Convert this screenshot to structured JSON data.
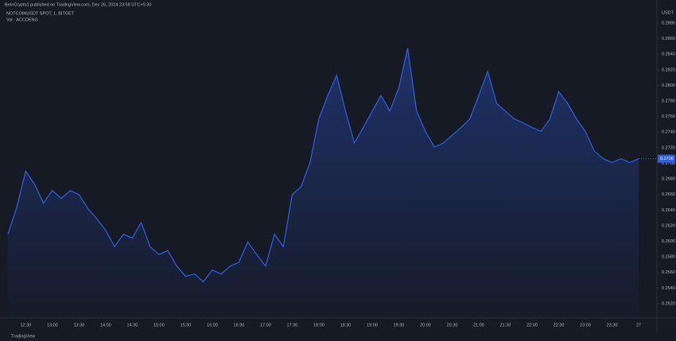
{
  "header": {
    "publisher": "BeInCrypto1 published on TradingView.com, Dec 26, 2024 23:58 UTC+5:30",
    "brand": "TradingView"
  },
  "chart_data": {
    "type": "area",
    "title": "NOTCOINUSDT SPOT, 1, BITGET",
    "subtitle": "Vol · ACCDENG",
    "currency": "USDT",
    "color": "#2f5fe8",
    "categories": [
      null,
      null,
      "12:30",
      null,
      null,
      "13:00",
      null,
      null,
      "13:30",
      null,
      null,
      "14:00",
      null,
      null,
      "14:30",
      null,
      null,
      "15:00",
      null,
      null,
      "15:30",
      null,
      null,
      "16:00",
      null,
      null,
      "16:30",
      null,
      null,
      "17:00",
      null,
      null,
      "17:30",
      null,
      null,
      "18:00",
      null,
      null,
      "18:30",
      null,
      null,
      "19:00",
      null,
      null,
      "19:30",
      null,
      null,
      "20:00",
      null,
      null,
      "20:30",
      null,
      null,
      "21:00",
      null,
      null,
      "21:30",
      null,
      null,
      "22:00",
      null,
      null,
      "22:30",
      null,
      null,
      "23:00",
      null,
      null,
      "23:30",
      null,
      null,
      "27"
    ],
    "values": [
      0.2609,
      0.2644,
      0.269,
      0.2673,
      0.2649,
      0.2665,
      0.2655,
      0.2665,
      0.266,
      0.2642,
      0.2629,
      0.2614,
      0.2593,
      0.2609,
      0.2604,
      0.2624,
      0.2593,
      0.2583,
      0.2588,
      0.2568,
      0.2555,
      0.2558,
      0.2548,
      0.2563,
      0.2558,
      0.2568,
      0.2573,
      0.2599,
      0.2583,
      0.2568,
      0.2609,
      0.2593,
      0.266,
      0.267,
      0.2701,
      0.2757,
      0.2787,
      0.2813,
      0.2767,
      0.2726,
      0.2746,
      0.2767,
      0.2787,
      0.2767,
      0.2797,
      0.2848,
      0.2767,
      0.2741,
      0.2721,
      0.2726,
      0.2736,
      0.2746,
      0.2757,
      0.2787,
      0.2818,
      0.2777,
      0.2767,
      0.2757,
      0.2752,
      0.2746,
      0.2741,
      0.2757,
      0.2792,
      0.2777,
      0.2757,
      0.2741,
      0.2716,
      0.2706,
      0.2701,
      0.2706,
      0.2701,
      0.2706
    ],
    "ylim": [
      0.252,
      0.288
    ],
    "yticks": [
      {
        "value": 0.288,
        "label": "0.2880"
      },
      {
        "value": 0.286,
        "label": "0.2860"
      },
      {
        "value": 0.284,
        "label": "0.2840"
      },
      {
        "value": 0.282,
        "label": "0.2820"
      },
      {
        "value": 0.28,
        "label": "0.2800"
      },
      {
        "value": 0.278,
        "label": "0.2780"
      },
      {
        "value": 0.276,
        "label": "0.2760"
      },
      {
        "value": 0.274,
        "label": "0.2740"
      },
      {
        "value": 0.272,
        "label": "0.2720"
      },
      {
        "value": 0.27,
        "label": "0.2700"
      },
      {
        "value": 0.268,
        "label": "0.2680"
      },
      {
        "value": 0.266,
        "label": "0.2660"
      },
      {
        "value": 0.264,
        "label": "0.2640"
      },
      {
        "value": 0.262,
        "label": "0.2620"
      },
      {
        "value": 0.26,
        "label": "0.2600"
      },
      {
        "value": 0.258,
        "label": "0.2580"
      },
      {
        "value": 0.256,
        "label": "0.2560"
      },
      {
        "value": 0.254,
        "label": "0.2540"
      },
      {
        "value": 0.252,
        "label": "0.2520"
      }
    ],
    "grid": false
  }
}
